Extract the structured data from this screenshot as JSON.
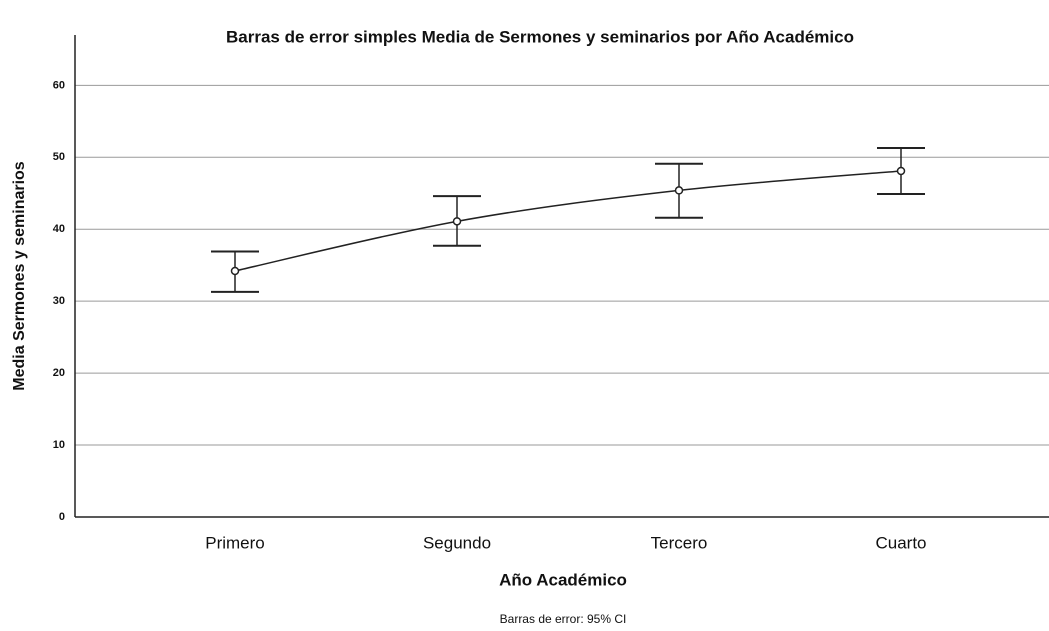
{
  "chart_data": {
    "type": "errorbar",
    "title": "Barras de error simples Media de Sermones y seminarios por Año Académico",
    "x_label": "Año Académico",
    "y_label": "Media Sermones y seminarios",
    "footnote": "Barras de error: 95% CI",
    "categories": [
      "Primero",
      "Segundo",
      "Tercero",
      "Cuarto"
    ],
    "values": [
      34.2,
      41.1,
      45.4,
      48.1
    ],
    "ci_lower": [
      31.3,
      37.7,
      41.6,
      44.9
    ],
    "ci_upper": [
      36.9,
      44.6,
      49.1,
      51.3
    ],
    "color": "#222222",
    "ylim": [
      0,
      67
    ],
    "yticks": [
      0,
      10,
      20,
      30,
      40,
      50,
      60
    ],
    "grid": true
  }
}
